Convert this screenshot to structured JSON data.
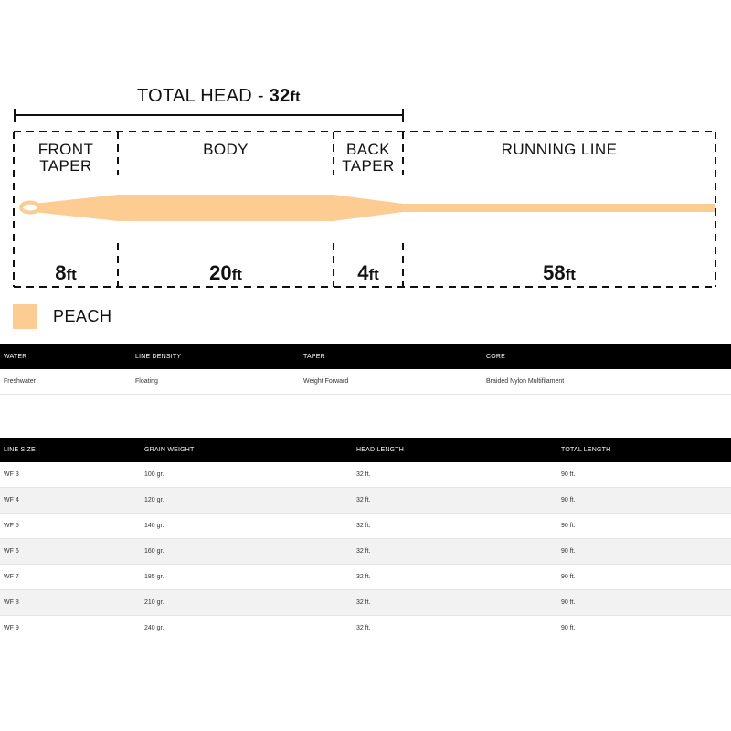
{
  "diagram": {
    "total_head_prefix": "TOTAL HEAD - ",
    "total_head_value": "32",
    "total_head_unit": "ft",
    "segments": [
      {
        "label_line1": "FRONT",
        "label_line2": "TAPER",
        "length_value": "8",
        "length_unit": "ft"
      },
      {
        "label_line1": "BODY",
        "label_line2": "",
        "length_value": "20",
        "length_unit": "ft"
      },
      {
        "label_line1": "BACK",
        "label_line2": "TAPER",
        "length_value": "4",
        "length_unit": "ft"
      },
      {
        "label_line1": "RUNNING LINE",
        "label_line2": "",
        "length_value": "58",
        "length_unit": "ft"
      }
    ],
    "line_color": "#fdcc93",
    "color_name": "PEACH"
  },
  "specs_table": {
    "headers": [
      "WATER",
      "LINE DENSITY",
      "TAPER",
      "CORE"
    ],
    "row": [
      "Freshwater",
      "Floating",
      "Weight Forward",
      "Braided Nylon Multifilament"
    ]
  },
  "sizes_table": {
    "headers": [
      "LINE SIZE",
      "GRAIN WEIGHT",
      "HEAD LENGTH",
      "TOTAL LENGTH"
    ],
    "rows": [
      [
        "WF 3",
        "100 gr.",
        "32 ft.",
        "90 ft."
      ],
      [
        "WF 4",
        "120 gr.",
        "32 ft.",
        "90 ft."
      ],
      [
        "WF 5",
        "140 gr.",
        "32 ft.",
        "90 ft."
      ],
      [
        "WF 6",
        "160 gr.",
        "32 ft.",
        "90 ft."
      ],
      [
        "WF 7",
        "185 gr.",
        "32 ft.",
        "90 ft."
      ],
      [
        "WF 8",
        "210 gr.",
        "32 ft.",
        "90 ft."
      ],
      [
        "WF 9",
        "240 gr.",
        "32 ft.",
        "90 ft."
      ]
    ]
  }
}
